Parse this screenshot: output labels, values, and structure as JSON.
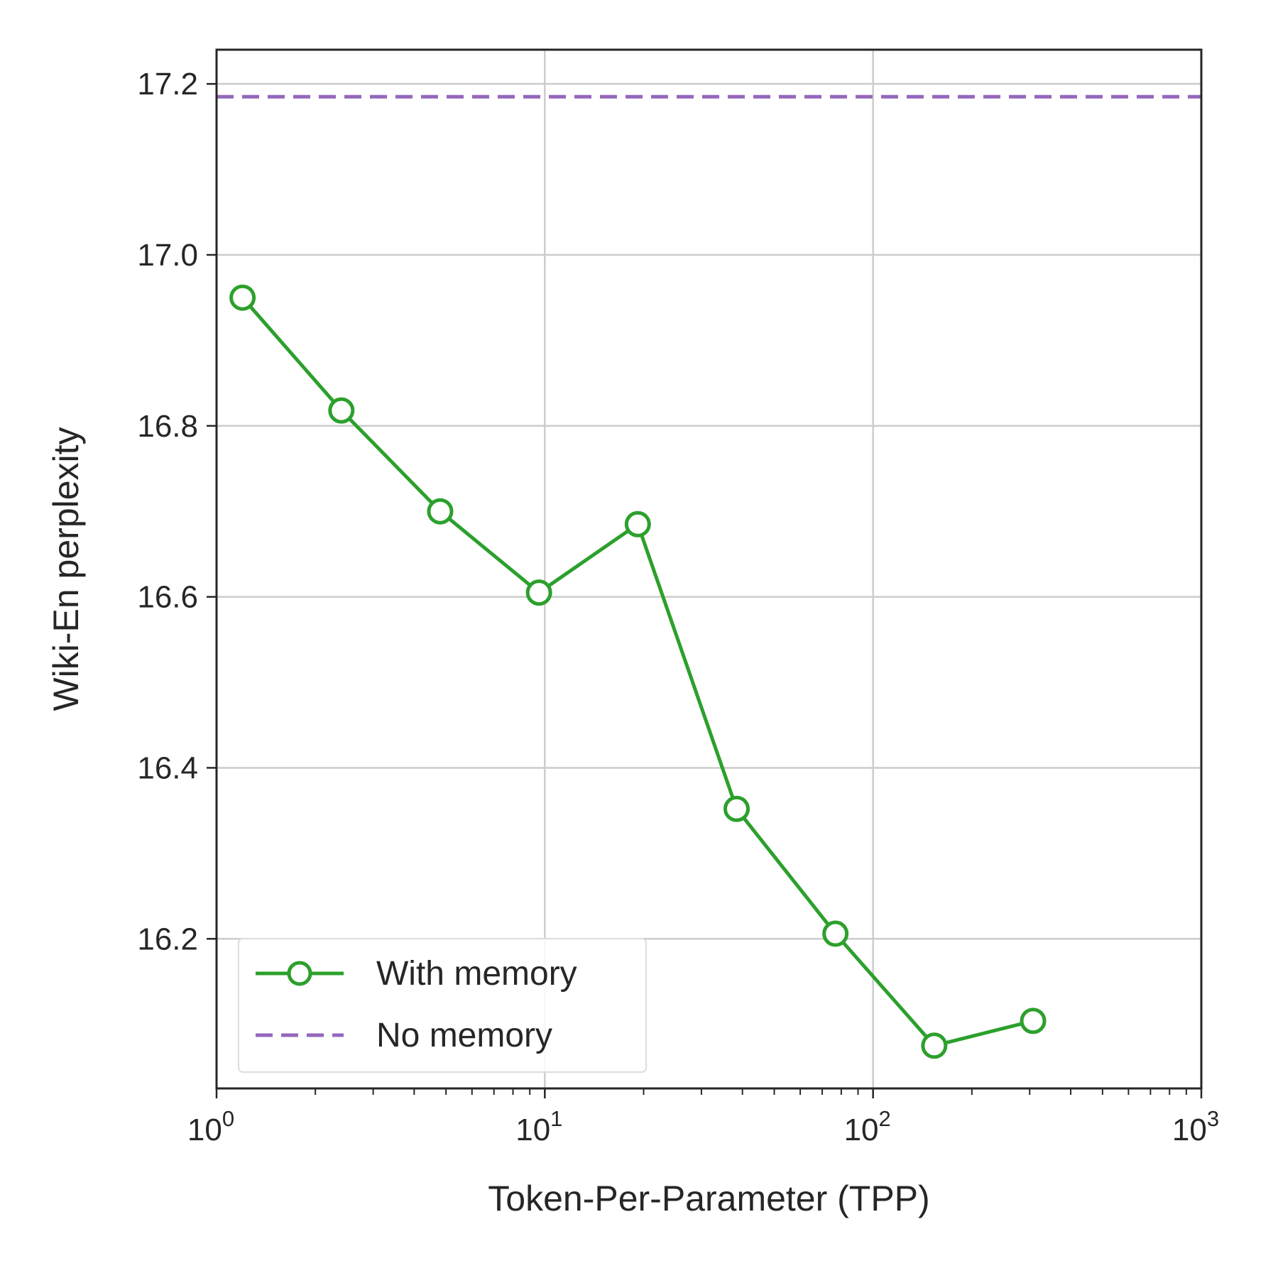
{
  "chart_data": {
    "type": "line",
    "xlabel": "Token-Per-Parameter (TPP)",
    "ylabel": "Wiki-En perplexity",
    "xscale": "log",
    "xlim": [
      1,
      1000
    ],
    "ylim": [
      16.025,
      17.24
    ],
    "grid": true,
    "x_ticks": [
      {
        "value": 1,
        "base": "10",
        "exp": "0"
      },
      {
        "value": 10,
        "base": "10",
        "exp": "1"
      },
      {
        "value": 100,
        "base": "10",
        "exp": "2"
      },
      {
        "value": 1000,
        "base": "10",
        "exp": "3"
      }
    ],
    "y_ticks": [
      {
        "value": 16.2,
        "label": "16.2"
      },
      {
        "value": 16.4,
        "label": "16.4"
      },
      {
        "value": 16.6,
        "label": "16.6"
      },
      {
        "value": 16.8,
        "label": "16.8"
      },
      {
        "value": 17.0,
        "label": "17.0"
      },
      {
        "value": 17.2,
        "label": "17.2"
      }
    ],
    "legend_position": "lower-left",
    "series": [
      {
        "name": "With memory",
        "style": "solid-line-with-open-circle-markers",
        "color": "#2ca02c",
        "x": [
          1.2,
          2.4,
          4.8,
          9.6,
          19.2,
          38.4,
          76.8,
          153.6,
          307.2
        ],
        "y": [
          16.95,
          16.818,
          16.7,
          16.605,
          16.685,
          16.352,
          16.206,
          16.075,
          16.104
        ]
      },
      {
        "name": "No memory",
        "style": "dashed-horizontal-line",
        "color": "#9467bd",
        "y": 17.185
      }
    ]
  }
}
